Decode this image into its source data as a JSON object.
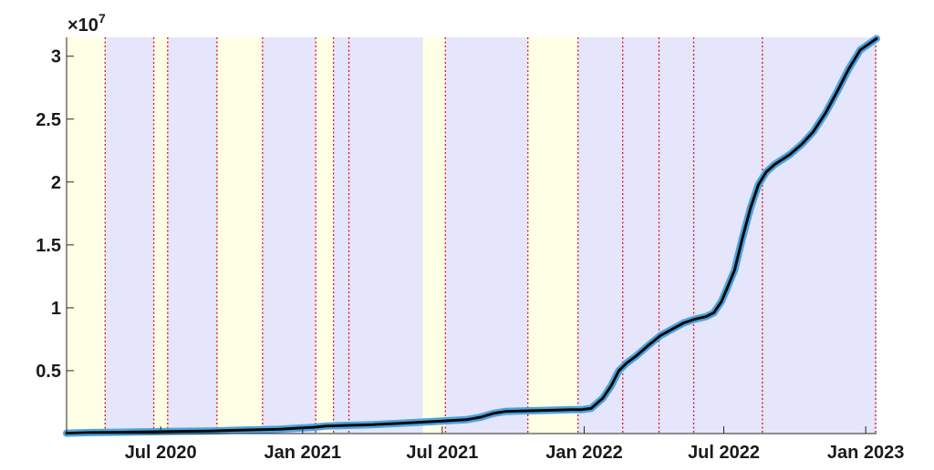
{
  "chart_data": {
    "type": "line",
    "title": "",
    "xlabel": "",
    "ylabel": "",
    "y_exponent_label": "×10",
    "y_exponent_power": "7",
    "y_multiplier": 10000000,
    "ylim": [
      0,
      3.15
    ],
    "xlim": [
      "2020-03-01",
      "2023-01-15"
    ],
    "y_ticks": [
      {
        "value": 0.5,
        "label": "0.5"
      },
      {
        "value": 1,
        "label": "1"
      },
      {
        "value": 1.5,
        "label": "1.5"
      },
      {
        "value": 2,
        "label": "2"
      },
      {
        "value": 2.5,
        "label": "2.5"
      },
      {
        "value": 3,
        "label": "3"
      }
    ],
    "x_ticks": [
      {
        "date": "2020-07-01",
        "label": "Jul 2020"
      },
      {
        "date": "2021-01-01",
        "label": "Jan 2021"
      },
      {
        "date": "2021-07-01",
        "label": "Jul 2021"
      },
      {
        "date": "2022-01-01",
        "label": "Jan 2022"
      },
      {
        "date": "2022-07-01",
        "label": "Jul 2022"
      },
      {
        "date": "2023-01-01",
        "label": "Jan 2023"
      }
    ],
    "shaded_regions": [
      {
        "start": "2020-03-01",
        "end": "2020-04-20",
        "color": "#ffffe5"
      },
      {
        "start": "2020-04-20",
        "end": "2020-06-22",
        "color": "#e5e5fc"
      },
      {
        "start": "2020-06-22",
        "end": "2020-07-10",
        "color": "#ffffe5"
      },
      {
        "start": "2020-07-10",
        "end": "2020-09-12",
        "color": "#e5e5fc"
      },
      {
        "start": "2020-09-12",
        "end": "2020-11-10",
        "color": "#ffffe5"
      },
      {
        "start": "2020-11-10",
        "end": "2021-01-18",
        "color": "#e5e5fc"
      },
      {
        "start": "2021-01-18",
        "end": "2021-02-10",
        "color": "#ffffe5"
      },
      {
        "start": "2021-02-10",
        "end": "2021-03-02",
        "color": "#e5e5fc"
      },
      {
        "start": "2021-03-02",
        "end": "2021-06-06",
        "color": "#e5e5fc"
      },
      {
        "start": "2021-06-06",
        "end": "2021-07-05",
        "color": "#ffffe5"
      },
      {
        "start": "2021-07-05",
        "end": "2021-10-20",
        "color": "#e5e5fc"
      },
      {
        "start": "2021-10-20",
        "end": "2021-12-24",
        "color": "#ffffe5"
      },
      {
        "start": "2021-12-24",
        "end": "2023-01-15",
        "color": "#e5e5fc"
      }
    ],
    "change_lines": [
      "2020-04-20",
      "2020-06-22",
      "2020-07-10",
      "2020-09-12",
      "2020-11-10",
      "2021-01-18",
      "2021-02-10",
      "2021-03-02",
      "2021-07-05",
      "2021-10-20",
      "2021-12-24",
      "2022-02-20",
      "2022-04-08",
      "2022-05-23",
      "2022-08-20",
      "2023-01-15"
    ],
    "series": [
      {
        "style": "fit",
        "color": "#4ea3dc",
        "points": [
          [
            "2020-03-01",
            0.003
          ],
          [
            "2020-04-01",
            0.008
          ],
          [
            "2020-05-01",
            0.01
          ],
          [
            "2020-06-01",
            0.012
          ],
          [
            "2020-07-01",
            0.015
          ],
          [
            "2020-08-01",
            0.018
          ],
          [
            "2020-09-01",
            0.02
          ],
          [
            "2020-10-01",
            0.025
          ],
          [
            "2020-11-01",
            0.03
          ],
          [
            "2020-12-01",
            0.035
          ],
          [
            "2021-01-01",
            0.045
          ],
          [
            "2021-01-15",
            0.05
          ],
          [
            "2021-02-01",
            0.06
          ],
          [
            "2021-03-01",
            0.065
          ],
          [
            "2021-04-01",
            0.07
          ],
          [
            "2021-05-01",
            0.08
          ],
          [
            "2021-06-01",
            0.09
          ],
          [
            "2021-07-01",
            0.1
          ],
          [
            "2021-08-01",
            0.11
          ],
          [
            "2021-08-20",
            0.13
          ],
          [
            "2021-09-05",
            0.16
          ],
          [
            "2021-09-20",
            0.175
          ],
          [
            "2021-10-15",
            0.18
          ],
          [
            "2021-11-15",
            0.185
          ],
          [
            "2021-12-15",
            0.19
          ],
          [
            "2021-12-28",
            0.19
          ],
          [
            "2022-01-10",
            0.2
          ],
          [
            "2022-01-25",
            0.28
          ],
          [
            "2022-02-05",
            0.38
          ],
          [
            "2022-02-15",
            0.5
          ],
          [
            "2022-02-25",
            0.56
          ],
          [
            "2022-03-10",
            0.62
          ],
          [
            "2022-03-25",
            0.7
          ],
          [
            "2022-04-10",
            0.78
          ],
          [
            "2022-04-25",
            0.83
          ],
          [
            "2022-05-10",
            0.88
          ],
          [
            "2022-05-25",
            0.91
          ],
          [
            "2022-06-08",
            0.93
          ],
          [
            "2022-06-18",
            0.96
          ],
          [
            "2022-06-28",
            1.05
          ],
          [
            "2022-07-05",
            1.15
          ],
          [
            "2022-07-15",
            1.3
          ],
          [
            "2022-07-25",
            1.55
          ],
          [
            "2022-08-05",
            1.8
          ],
          [
            "2022-08-15",
            1.98
          ],
          [
            "2022-08-25",
            2.08
          ],
          [
            "2022-09-05",
            2.14
          ],
          [
            "2022-09-15",
            2.18
          ],
          [
            "2022-09-25",
            2.22
          ],
          [
            "2022-10-10",
            2.3
          ],
          [
            "2022-10-25",
            2.4
          ],
          [
            "2022-11-10",
            2.55
          ],
          [
            "2022-11-25",
            2.72
          ],
          [
            "2022-12-10",
            2.9
          ],
          [
            "2022-12-25",
            3.05
          ],
          [
            "2023-01-15",
            3.14
          ]
        ]
      },
      {
        "style": "data",
        "color": "#0a0a0a",
        "points": [
          [
            "2020-03-01",
            0.003
          ],
          [
            "2020-04-01",
            0.008
          ],
          [
            "2020-05-01",
            0.01
          ],
          [
            "2020-06-01",
            0.012
          ],
          [
            "2020-07-01",
            0.015
          ],
          [
            "2020-08-01",
            0.018
          ],
          [
            "2020-09-01",
            0.02
          ],
          [
            "2020-10-01",
            0.025
          ],
          [
            "2020-11-01",
            0.03
          ],
          [
            "2020-12-01",
            0.035
          ],
          [
            "2021-01-01",
            0.045
          ],
          [
            "2021-01-15",
            0.05
          ],
          [
            "2021-02-01",
            0.06
          ],
          [
            "2021-03-01",
            0.065
          ],
          [
            "2021-04-01",
            0.07
          ],
          [
            "2021-05-01",
            0.08
          ],
          [
            "2021-06-01",
            0.09
          ],
          [
            "2021-07-01",
            0.1
          ],
          [
            "2021-08-01",
            0.11
          ],
          [
            "2021-08-20",
            0.13
          ],
          [
            "2021-09-05",
            0.16
          ],
          [
            "2021-09-20",
            0.175
          ],
          [
            "2021-10-15",
            0.18
          ],
          [
            "2021-11-15",
            0.185
          ],
          [
            "2021-12-15",
            0.19
          ],
          [
            "2021-12-28",
            0.19
          ],
          [
            "2022-01-10",
            0.2
          ],
          [
            "2022-01-25",
            0.28
          ],
          [
            "2022-02-05",
            0.38
          ],
          [
            "2022-02-15",
            0.5
          ],
          [
            "2022-02-25",
            0.56
          ],
          [
            "2022-03-10",
            0.62
          ],
          [
            "2022-03-25",
            0.7
          ],
          [
            "2022-04-10",
            0.78
          ],
          [
            "2022-04-25",
            0.83
          ],
          [
            "2022-05-10",
            0.88
          ],
          [
            "2022-05-25",
            0.91
          ],
          [
            "2022-06-08",
            0.93
          ],
          [
            "2022-06-18",
            0.96
          ],
          [
            "2022-06-28",
            1.05
          ],
          [
            "2022-07-05",
            1.15
          ],
          [
            "2022-07-15",
            1.3
          ],
          [
            "2022-07-25",
            1.55
          ],
          [
            "2022-08-05",
            1.8
          ],
          [
            "2022-08-15",
            1.98
          ],
          [
            "2022-08-25",
            2.08
          ],
          [
            "2022-09-05",
            2.14
          ],
          [
            "2022-09-15",
            2.18
          ],
          [
            "2022-09-25",
            2.22
          ],
          [
            "2022-10-10",
            2.3
          ],
          [
            "2022-10-25",
            2.4
          ],
          [
            "2022-11-10",
            2.55
          ],
          [
            "2022-11-25",
            2.72
          ],
          [
            "2022-12-10",
            2.9
          ],
          [
            "2022-12-25",
            3.05
          ],
          [
            "2023-01-15",
            3.14
          ]
        ]
      }
    ],
    "grid": false,
    "legend": "none"
  }
}
